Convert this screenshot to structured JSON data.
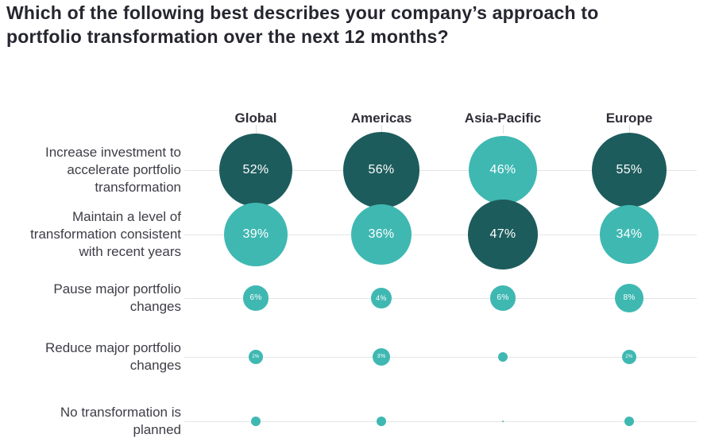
{
  "page": {
    "background": "#ffffff"
  },
  "chart_data": {
    "type": "bubble",
    "title": "Which of the following best describes your company’s approach to\nportfolio transformation over the next 12 months?",
    "columns": [
      "Global",
      "Americas",
      "Asia-Pacific",
      "Europe"
    ],
    "rows": [
      {
        "label": "Increase investment to\naccelerate portfolio\ntransformation",
        "values": [
          52,
          56,
          46,
          55
        ],
        "value_labels": [
          "52%",
          "56%",
          "46%",
          "55%"
        ],
        "emphasis": [
          "dark",
          "dark",
          "light",
          "dark"
        ]
      },
      {
        "label": "Maintain a level of\ntransformation consistent\nwith recent years",
        "values": [
          39,
          36,
          47,
          34
        ],
        "value_labels": [
          "39%",
          "36%",
          "47%",
          "34%"
        ],
        "emphasis": [
          "light",
          "light",
          "dark",
          "light"
        ]
      },
      {
        "label": "Pause major portfolio\nchanges",
        "values": [
          6,
          4,
          6,
          8
        ],
        "value_labels": [
          "6%",
          "4%",
          "6%",
          "8%"
        ],
        "emphasis": [
          "light",
          "light",
          "light",
          "light"
        ]
      },
      {
        "label": "Reduce major portfolio\nchanges",
        "values": [
          2,
          3,
          1,
          2
        ],
        "value_labels": [
          "2%",
          "3%",
          "",
          "2%"
        ],
        "emphasis": [
          "light",
          "light",
          "light",
          "light"
        ]
      },
      {
        "label": "No transformation is\nplanned",
        "values": [
          1,
          1,
          0,
          1
        ],
        "value_labels": [
          "",
          "",
          "",
          ""
        ],
        "emphasis": [
          "light",
          "light",
          "light",
          "light"
        ]
      }
    ],
    "palette": {
      "dark": "#1d5c5c",
      "light": "#3fb8b2",
      "value_text": "#ffffff",
      "title_text": "#262630",
      "header_text": "#2e2e38",
      "row_label_text": "#3d3d46",
      "grid_line": "#e4e4e4"
    },
    "legend_position": "none",
    "grid": "horizontal-row-lines"
  }
}
